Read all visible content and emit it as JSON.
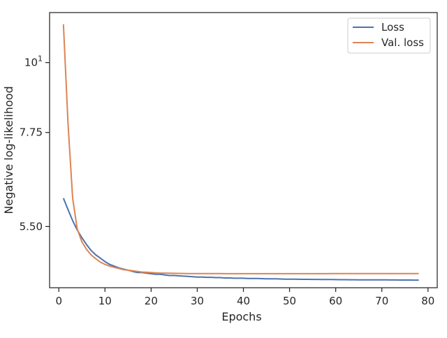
{
  "chart_data": {
    "type": "line",
    "xlabel": "Epochs",
    "ylabel": "Negative log-likelihood",
    "xlim": [
      -2,
      82
    ],
    "ylim": [
      4.4,
      12.0
    ],
    "y_scale": "log",
    "x_ticks": [
      0,
      10,
      20,
      30,
      40,
      50,
      60,
      70,
      80
    ],
    "y_ticks": [
      {
        "value": 10,
        "base": "10",
        "exp": "1"
      },
      {
        "value": 7.75,
        "label": "7.75"
      },
      {
        "value": 5.5,
        "label": "5.50"
      }
    ],
    "legend_position": "top-right",
    "grid": false,
    "series": [
      {
        "name": "Loss",
        "color": "#4c72b0",
        "x": [
          1,
          2,
          3,
          4,
          5,
          6,
          7,
          8,
          9,
          10,
          11,
          12,
          13,
          14,
          15,
          16,
          17,
          18,
          19,
          20,
          21,
          22,
          23,
          24,
          25,
          26,
          27,
          28,
          29,
          30,
          31,
          32,
          33,
          34,
          35,
          36,
          37,
          38,
          39,
          40,
          41,
          42,
          43,
          44,
          45,
          46,
          47,
          48,
          49,
          50,
          51,
          52,
          53,
          54,
          55,
          56,
          57,
          58,
          59,
          60,
          61,
          62,
          63,
          64,
          65,
          66,
          67,
          68,
          69,
          70,
          71,
          72,
          73,
          74,
          75,
          76,
          77,
          78
        ],
        "y": [
          6.1,
          5.85,
          5.62,
          5.43,
          5.28,
          5.15,
          5.04,
          4.96,
          4.9,
          4.84,
          4.79,
          4.76,
          4.73,
          4.71,
          4.69,
          4.67,
          4.65,
          4.65,
          4.64,
          4.63,
          4.62,
          4.62,
          4.61,
          4.6,
          4.6,
          4.595,
          4.59,
          4.585,
          4.58,
          4.575,
          4.575,
          4.57,
          4.57,
          4.565,
          4.565,
          4.56,
          4.56,
          4.555,
          4.555,
          4.555,
          4.55,
          4.55,
          4.55,
          4.548,
          4.545,
          4.545,
          4.545,
          4.542,
          4.54,
          4.54,
          4.54,
          4.538,
          4.537,
          4.536,
          4.535,
          4.535,
          4.534,
          4.533,
          4.533,
          4.532,
          4.531,
          4.531,
          4.53,
          4.53,
          4.529,
          4.529,
          4.528,
          4.528,
          4.527,
          4.527,
          4.527,
          4.526,
          4.526,
          4.525,
          4.525,
          4.525,
          4.524,
          4.524
        ]
      },
      {
        "name": "Val. loss",
        "color": "#dd8452",
        "x": [
          1,
          2,
          3,
          4,
          5,
          6,
          7,
          8,
          9,
          10,
          11,
          12,
          13,
          14,
          15,
          16,
          17,
          18,
          19,
          20,
          21,
          22,
          23,
          24,
          25,
          26,
          27,
          28,
          29,
          30,
          31,
          32,
          33,
          34,
          35,
          36,
          37,
          38,
          39,
          40,
          41,
          42,
          43,
          44,
          45,
          46,
          47,
          48,
          49,
          50,
          51,
          52,
          53,
          54,
          55,
          56,
          57,
          58,
          59,
          60,
          61,
          62,
          63,
          64,
          65,
          66,
          67,
          68,
          69,
          70,
          71,
          72,
          73,
          74,
          75,
          76,
          77,
          78
        ],
        "y": [
          11.5,
          8.0,
          6.1,
          5.45,
          5.2,
          5.06,
          4.96,
          4.89,
          4.83,
          4.79,
          4.76,
          4.74,
          4.72,
          4.7,
          4.69,
          4.68,
          4.67,
          4.66,
          4.655,
          4.65,
          4.645,
          4.642,
          4.64,
          4.638,
          4.637,
          4.636,
          4.635,
          4.634,
          4.634,
          4.633,
          4.633,
          4.633,
          4.632,
          4.632,
          4.632,
          4.631,
          4.631,
          4.631,
          4.631,
          4.631,
          4.631,
          4.631,
          4.631,
          4.631,
          4.631,
          4.631,
          4.631,
          4.631,
          4.631,
          4.631,
          4.631,
          4.631,
          4.631,
          4.631,
          4.631,
          4.631,
          4.631,
          4.631,
          4.632,
          4.632,
          4.632,
          4.632,
          4.632,
          4.632,
          4.632,
          4.632,
          4.633,
          4.633,
          4.633,
          4.633,
          4.633,
          4.633,
          4.634,
          4.634,
          4.634,
          4.634,
          4.634,
          4.634
        ]
      }
    ]
  }
}
